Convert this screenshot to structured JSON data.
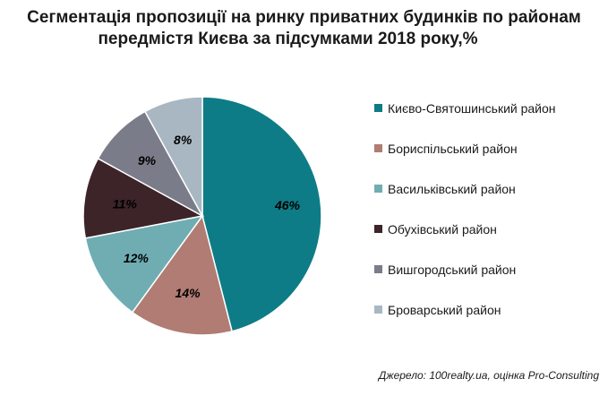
{
  "title": {
    "line1": "Сегментація пропозиції на ринку приватних будинків по районам",
    "line2": "передмістя Києва за підсумками 2018 року,%"
  },
  "source": "Джерело: 100realty.ua, оцінка Pro-Consulting",
  "chart_data": {
    "type": "pie",
    "unit": "%",
    "slices": [
      {
        "name": "Києво-Святошинський район",
        "value": 46,
        "label": "46%",
        "color": "#0e7c86"
      },
      {
        "name": "Бориспільський район",
        "value": 14,
        "label": "14%",
        "color": "#b07c73"
      },
      {
        "name": "Васильківський район",
        "value": 12,
        "label": "12%",
        "color": "#6fadb2"
      },
      {
        "name": "Обухівський район",
        "value": 11,
        "label": "11%",
        "color": "#3c2428"
      },
      {
        "name": "Вишгородський район",
        "value": 9,
        "label": "9%",
        "color": "#7b7c89"
      },
      {
        "name": "Броварський район",
        "value": 8,
        "label": "8%",
        "color": "#a9b7c3"
      }
    ],
    "legend_position": "right"
  }
}
